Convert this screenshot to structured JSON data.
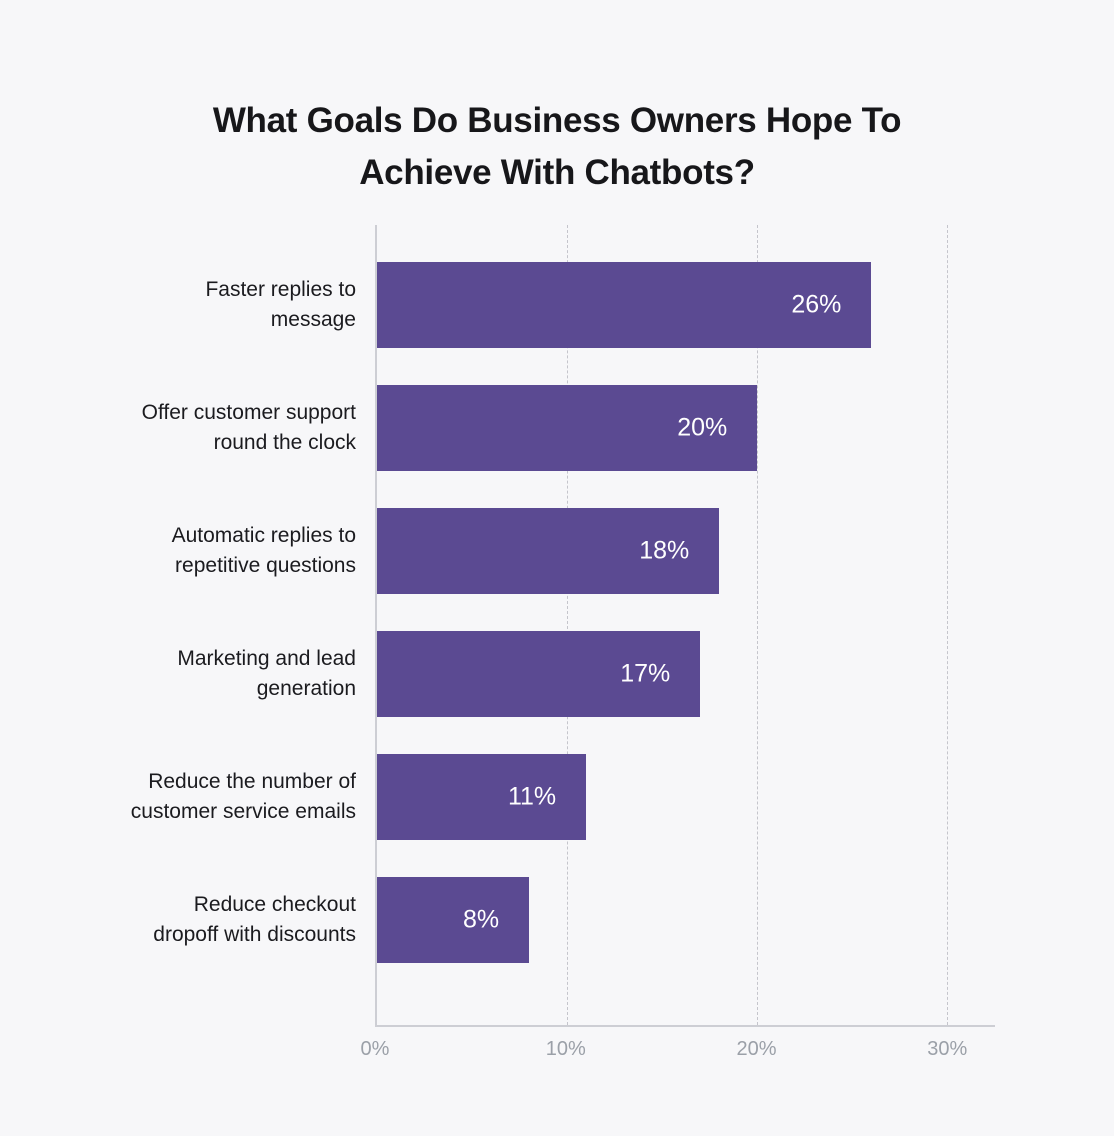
{
  "title": "What Goals Do Business Owners Hope To Achieve With Chatbots?",
  "title_lines": [
    "What Goals Do Business Owners Hope To",
    "Achieve With Chatbots?"
  ],
  "colors": {
    "background": "#f7f7f9",
    "bar": "#5b4a92",
    "title_text": "#17171a",
    "category_text": "#1b1b1f",
    "value_text": "#ffffff",
    "axis_line": "#cdced4",
    "gridline": "#c5c5cc",
    "tick_text": "#9ba0a8"
  },
  "chart_data": {
    "type": "bar",
    "orientation": "horizontal",
    "title": "What Goals Do Business Owners Hope To Achieve With Chatbots?",
    "categories": [
      "Faster replies to message",
      "Offer customer support round the clock",
      "Automatic replies to repetitive questions",
      "Marketing and lead generation",
      "Reduce the number of customer service emails",
      "Reduce checkout dropoff with discounts"
    ],
    "categories_lines": [
      [
        "Faster replies to",
        "message"
      ],
      [
        "Offer customer support",
        "round the clock"
      ],
      [
        "Automatic replies to",
        "repetitive questions"
      ],
      [
        "Marketing and lead",
        "generation"
      ],
      [
        "Reduce the number of",
        "customer service emails"
      ],
      [
        "Reduce checkout",
        "dropoff with discounts"
      ]
    ],
    "values": [
      26,
      20,
      18,
      17,
      11,
      8
    ],
    "value_labels": [
      "26%",
      "20%",
      "18%",
      "17%",
      "11%",
      "8%"
    ],
    "xlabel": "",
    "ylabel": "",
    "xlim": [
      0,
      32.5
    ],
    "x_ticks": [
      {
        "value": 0,
        "label": "0%"
      },
      {
        "value": 10,
        "label": "10%"
      },
      {
        "value": 20,
        "label": "20%"
      },
      {
        "value": 30,
        "label": "30%"
      }
    ],
    "grid": "vertical-dashed",
    "legend": "none"
  }
}
